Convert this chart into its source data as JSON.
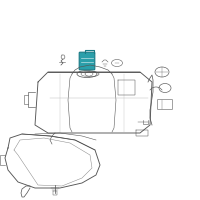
{
  "bg_color": "#ffffff",
  "highlight_color": "#2b9faa",
  "line_color": "#555555",
  "light_line": "#888888",
  "very_light": "#bbbbbb",
  "fig_size": [
    2.0,
    2.0
  ],
  "dpi": 100
}
